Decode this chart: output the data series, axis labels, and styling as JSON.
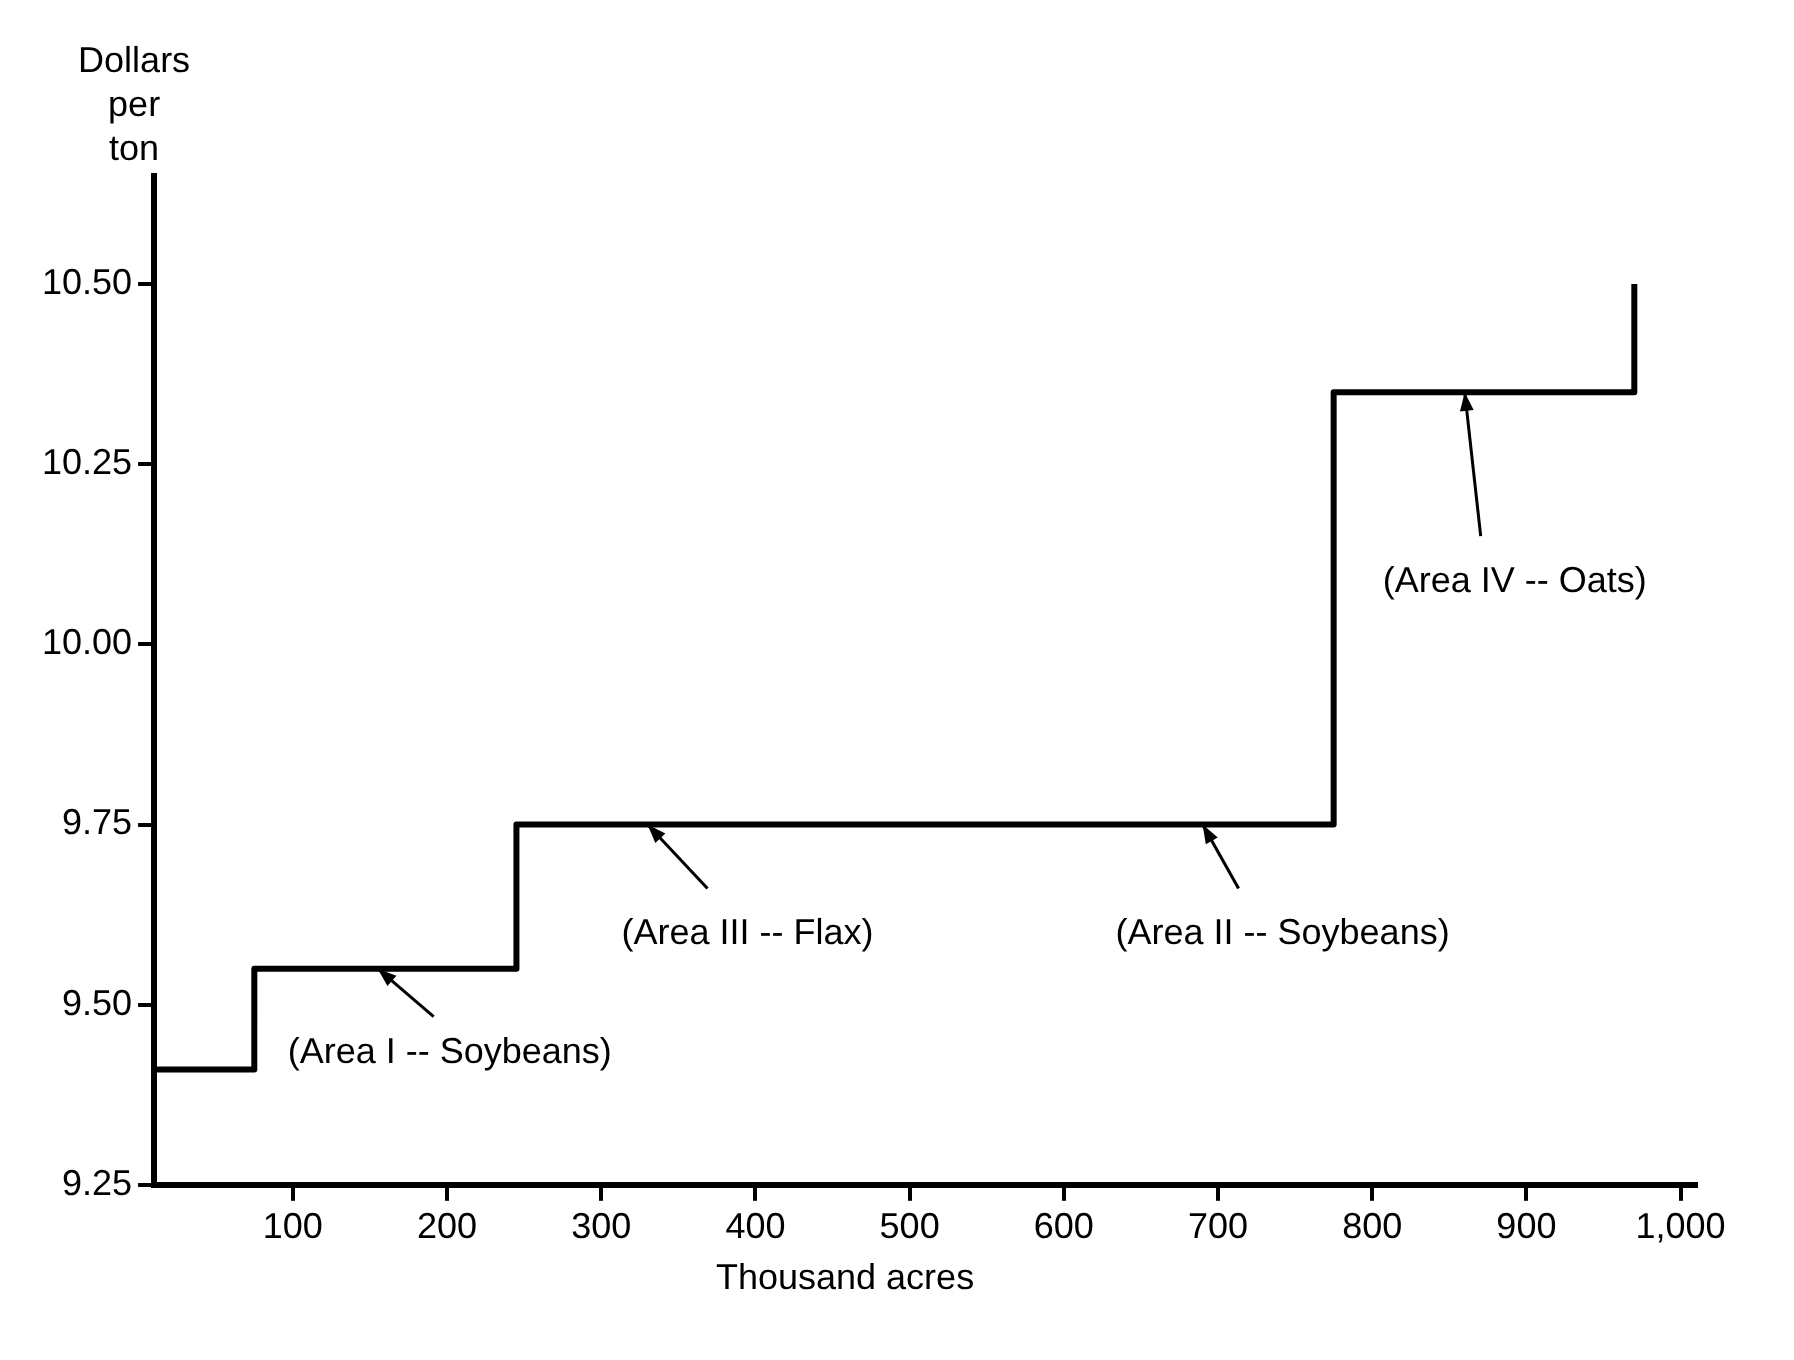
{
  "chart_data": {
    "type": "step",
    "ylabel": "Dollars per ton",
    "xlabel": "Thousand acres",
    "x": [
      10,
      75,
      245,
      775,
      970,
      970
    ],
    "values": [
      9.41,
      9.55,
      9.75,
      10.35,
      10.35,
      10.5
    ],
    "color": "#000000",
    "xlim": [
      10,
      1010
    ],
    "xticks": [
      100,
      200,
      300,
      400,
      500,
      600,
      700,
      800,
      900,
      {
        "value": 1000,
        "label": "1,000"
      }
    ],
    "ylim": [
      9.25,
      10.65
    ],
    "yticks": [
      {
        "value": 9.25,
        "label": "9.25"
      },
      {
        "value": 9.5,
        "label": "9.50"
      },
      {
        "value": 9.75,
        "label": "9.75"
      },
      {
        "value": 10,
        "label": "10.00"
      },
      {
        "value": 10.25,
        "label": "10.25"
      },
      {
        "value": 10.5,
        "label": "10.50"
      }
    ],
    "grid": false,
    "legend": false,
    "annotations": [
      {
        "text": "(Area I -- Soybeans)",
        "x": 155,
        "y": 9.55
      },
      {
        "text": "(Area III -- Flax)",
        "x": 330,
        "y": 9.75
      },
      {
        "text": "(Area II -- Soybeans)",
        "x": 690,
        "y": 9.75
      },
      {
        "text": "(Area IV -- Oats)",
        "x": 860,
        "y": 10.35
      }
    ]
  }
}
